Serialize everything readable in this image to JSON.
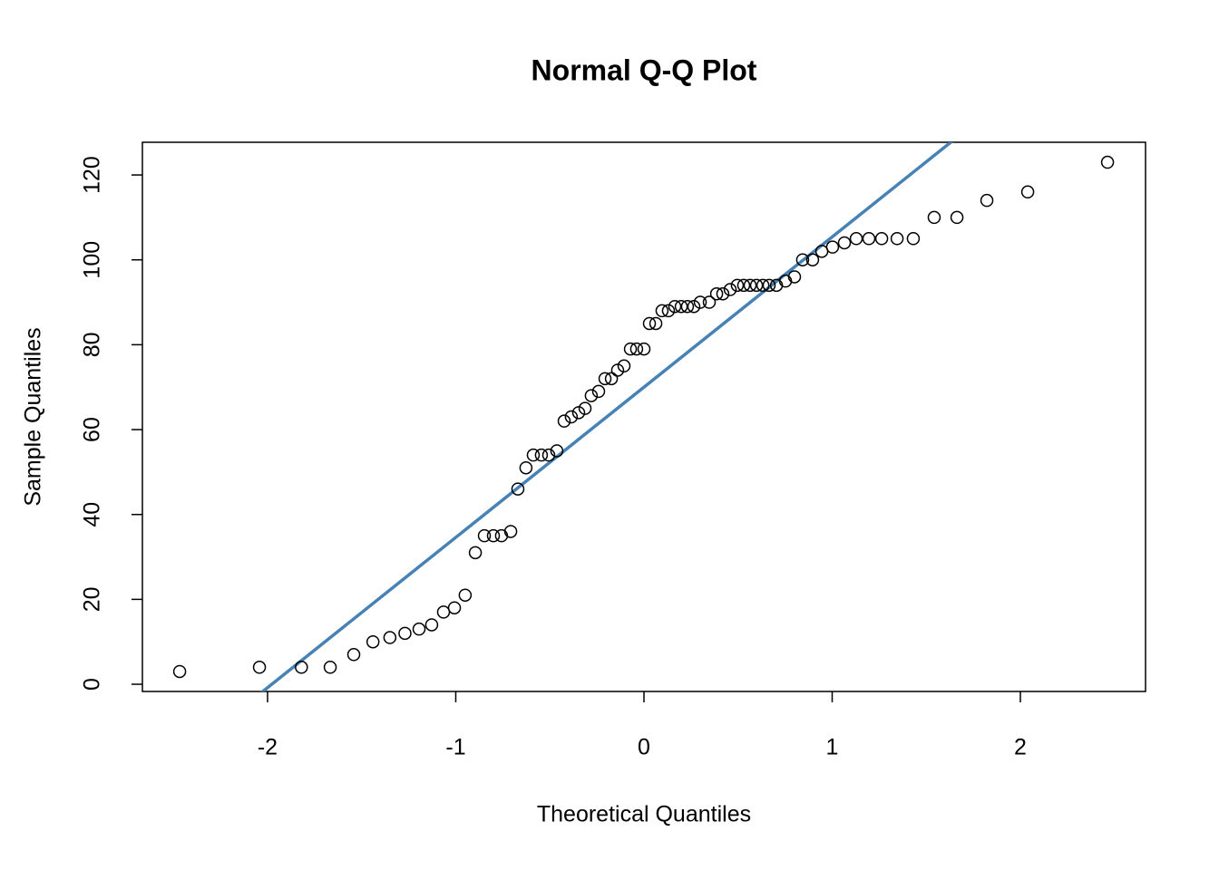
{
  "chart_data": {
    "type": "scatter",
    "title": "Normal Q-Q Plot",
    "x_label": "Theoretical Quantiles",
    "y_label": "Sample Quantiles",
    "x": [
      -2.467,
      -2.043,
      -1.82,
      -1.667,
      -1.542,
      -1.44,
      -1.35,
      -1.27,
      -1.195,
      -1.128,
      -1.065,
      -1.007,
      -0.95,
      -0.896,
      -0.848,
      -0.8,
      -0.757,
      -0.708,
      -0.67,
      -0.627,
      -0.588,
      -0.545,
      -0.506,
      -0.463,
      -0.424,
      -0.386,
      -0.347,
      -0.313,
      -0.28,
      -0.241,
      -0.207,
      -0.173,
      -0.14,
      -0.106,
      -0.072,
      -0.039,
      0.0,
      0.029,
      0.063,
      0.096,
      0.13,
      0.164,
      0.198,
      0.231,
      0.265,
      0.299,
      0.347,
      0.386,
      0.419,
      0.458,
      0.496,
      0.53,
      0.564,
      0.598,
      0.632,
      0.665,
      0.704,
      0.752,
      0.8,
      0.843,
      0.896,
      0.945,
      1.002,
      1.065,
      1.128,
      1.195,
      1.263,
      1.345,
      1.431,
      1.542,
      1.663,
      1.822,
      2.039,
      2.463
    ],
    "values": [
      3,
      4,
      4,
      4,
      7,
      10,
      11,
      12,
      13,
      14,
      17,
      18,
      21,
      31,
      35,
      35,
      35,
      36,
      46,
      51,
      54,
      54,
      54,
      55,
      62,
      63,
      64,
      65,
      68,
      69,
      72,
      72,
      74,
      75,
      79,
      79,
      79,
      85,
      85,
      88,
      88,
      89,
      89,
      89,
      89,
      90,
      90,
      92,
      92,
      93,
      94,
      94,
      94,
      94,
      94,
      94,
      94,
      95,
      96,
      100,
      100,
      102,
      103,
      104,
      105,
      105,
      105,
      105,
      105,
      110,
      110,
      114,
      116,
      123
    ],
    "color": "#000000",
    "reference_line": {
      "intercept": 70,
      "slope": 35.4,
      "color": "#4682b4"
    },
    "xlim": [
      -2.665,
      2.665
    ],
    "ylim": [
      -1.7,
      127.7
    ],
    "xticks": [
      -2,
      -1,
      0,
      1,
      2
    ],
    "yticks": [
      0,
      20,
      40,
      60,
      80,
      100,
      120
    ]
  }
}
